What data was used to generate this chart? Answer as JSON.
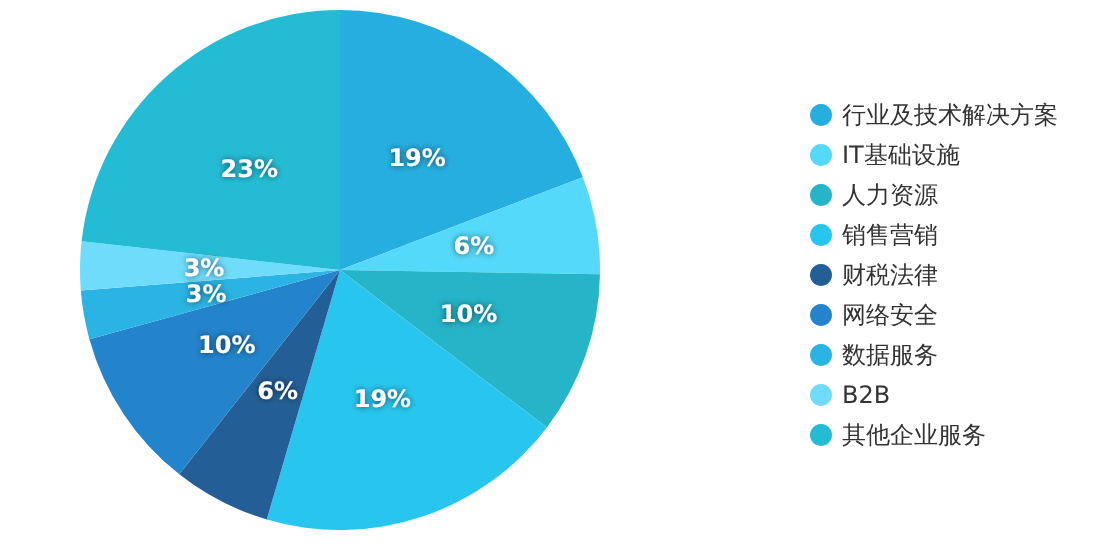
{
  "chart_data": {
    "type": "pie",
    "categories": [
      "行业及技术解决方案",
      "IT基础设施",
      "人力资源",
      "销售营销",
      "财税法律",
      "网络安全",
      "数据服务",
      "B2B",
      "其他企业服务"
    ],
    "values": [
      19,
      6,
      10,
      19,
      6,
      10,
      3,
      3,
      23
    ],
    "value_labels": [
      "19%",
      "6%",
      "10%",
      "19%",
      "6%",
      "10%",
      "3%",
      "3%",
      "23%"
    ],
    "colors": [
      "#27aee0",
      "#55d9fa",
      "#25b4c8",
      "#28c6ee",
      "#235f96",
      "#2384cc",
      "#2ab4e3",
      "#6fdcfc",
      "#24bcd4"
    ],
    "legend": "right"
  }
}
